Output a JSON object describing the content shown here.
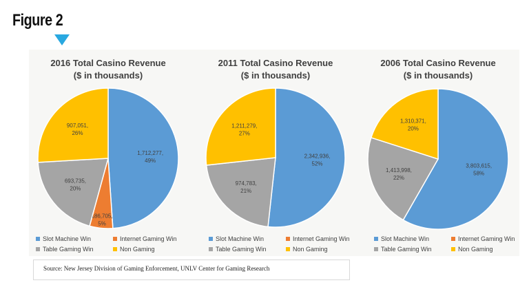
{
  "figure_label": "Figure 2",
  "accent_color": "#29a8e0",
  "source_note": "Source: New Jersey Division of Gaming Enforcement, UNLV Center for Gaming Research",
  "chart_data": [
    {
      "type": "pie",
      "title": "2016 Total Casino Revenue",
      "subtitle": "($ in thousands)",
      "slices": [
        {
          "name": "Slot Machine Win",
          "value": 1712277,
          "label": "1,712,277,",
          "pct_label": "49%",
          "color": "#5b9bd5"
        },
        {
          "name": "Internet Gaming Win",
          "value": 186705,
          "label": "186,705,",
          "pct_label": "5%",
          "color": "#ed7d31"
        },
        {
          "name": "Table Gaming Win",
          "value": 693735,
          "label": "693,735,",
          "pct_label": "20%",
          "color": "#a5a5a5"
        },
        {
          "name": "Non Gaming",
          "value": 907051,
          "label": "907,051,",
          "pct_label": "26%",
          "color": "#ffc000"
        }
      ],
      "legend": [
        "Slot Machine Win",
        "Internet Gaming Win",
        "Table Gaming Win",
        "Non Gaming"
      ]
    },
    {
      "type": "pie",
      "title": "2011 Total Casino Revenue",
      "subtitle": "($ in thousands)",
      "slices": [
        {
          "name": "Slot Machine Win",
          "value": 2342936,
          "label": "2,342,936,",
          "pct_label": "52%",
          "color": "#5b9bd5"
        },
        {
          "name": "Table Gaming Win",
          "value": 974783,
          "label": "974,783,",
          "pct_label": "21%",
          "color": "#a5a5a5"
        },
        {
          "name": "Non Gaming",
          "value": 1211279,
          "label": "1,211,279,",
          "pct_label": "27%",
          "color": "#ffc000"
        }
      ],
      "legend": [
        "Slot Machine Win",
        "Internet Gaming Win",
        "Table Gaming Win",
        "Non Gaming"
      ]
    },
    {
      "type": "pie",
      "title": "2006 Total Casino Revenue",
      "subtitle": "($ in thousands)",
      "slices": [
        {
          "name": "Slot Machine Win",
          "value": 3803615,
          "label": "3,803,615,",
          "pct_label": "58%",
          "color": "#5b9bd5"
        },
        {
          "name": "Table Gaming Win",
          "value": 1413998,
          "label": "1,413,998,",
          "pct_label": "22%",
          "color": "#a5a5a5"
        },
        {
          "name": "Non Gaming",
          "value": 1310371,
          "label": "1,310,371,",
          "pct_label": "20%",
          "color": "#ffc000"
        }
      ],
      "legend": [
        "Slot Machine Win",
        "Internet Gaming Win",
        "Table Gaming Win",
        "Non Gaming"
      ]
    }
  ],
  "legend_colors": {
    "Slot Machine Win": "#5b9bd5",
    "Internet Gaming Win": "#ed7d31",
    "Table Gaming Win": "#a5a5a5",
    "Non Gaming": "#ffc000"
  }
}
